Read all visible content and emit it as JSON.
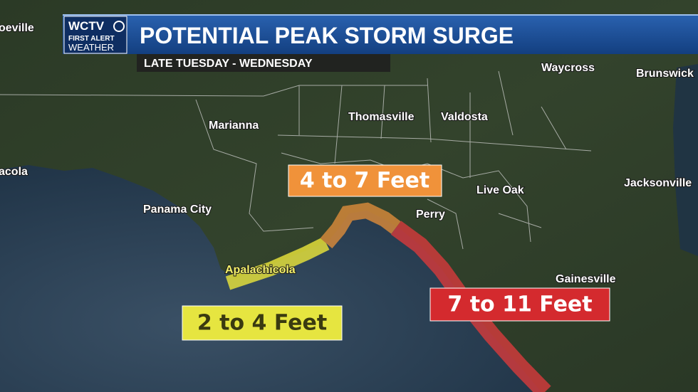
{
  "header": {
    "logo": {
      "station": "WCTV",
      "line1": "FIRST ALERT",
      "line2": "WEATHER"
    },
    "title": "POTENTIAL PEAK STORM SURGE",
    "subtitle": "LATE TUESDAY - WEDNESDAY"
  },
  "cities": [
    "oeville",
    "acola",
    "Marianna",
    "Panama City",
    "Apalachicola",
    "Thomasville",
    "Valdosta",
    "Waycross",
    "Brunswick",
    "Jacksonville",
    "Live Oak",
    "Perry",
    "Gainesville"
  ],
  "surge_zones": [
    {
      "label": "4 to 7 Feet"
    },
    {
      "label": "2 to 4 Feet"
    },
    {
      "label": "7 to 11 Feet"
    }
  ]
}
